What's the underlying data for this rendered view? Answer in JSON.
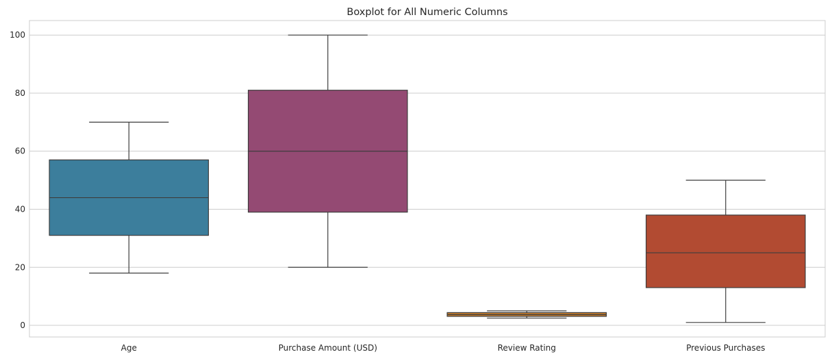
{
  "chart_data": {
    "type": "box",
    "title": "Boxplot for All Numeric Columns",
    "xlabel": "",
    "ylabel": "",
    "ylim": [
      -4,
      105
    ],
    "yticks": [
      0,
      20,
      40,
      60,
      80,
      100
    ],
    "grid": "horizontal",
    "legend": "none",
    "categories": [
      "Age",
      "Purchase Amount (USD)",
      "Review Rating",
      "Previous Purchases"
    ],
    "boxes": [
      {
        "name": "Age",
        "min": 18,
        "q1": 31,
        "median": 44,
        "q3": 57,
        "max": 70,
        "color": "#3c7e9c"
      },
      {
        "name": "Purchase Amount (USD)",
        "min": 20,
        "q1": 39,
        "median": 60,
        "q3": 81,
        "max": 100,
        "color": "#944a73"
      },
      {
        "name": "Review Rating",
        "min": 2.5,
        "q1": 3.1,
        "median": 3.7,
        "q3": 4.4,
        "max": 5.0,
        "color": "#c07a2d"
      },
      {
        "name": "Previous Purchases",
        "min": 1,
        "q1": 13,
        "median": 25,
        "q3": 38,
        "max": 50,
        "color": "#b24b32"
      }
    ],
    "colors": {
      "line": "#3d3d3d",
      "grid": "#cccccc",
      "axis": "#cccccc"
    }
  }
}
